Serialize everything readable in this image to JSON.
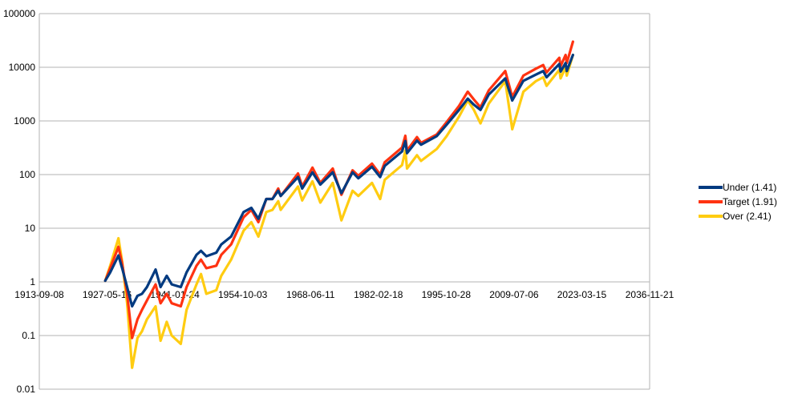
{
  "chart_data": {
    "type": "line",
    "title": "",
    "xlabel": "",
    "ylabel": "",
    "y_scale": "log",
    "ylim": [
      0.01,
      100000
    ],
    "xlim": [
      "1913-09-08",
      "2036-11-21"
    ],
    "x_ticks": [
      "1913-09-08",
      "1927-05-16",
      "1941-01-24",
      "1954-10-03",
      "1968-06-11",
      "1982-02-18",
      "1995-10-28",
      "2009-07-06",
      "2023-03-15",
      "2036-11-21"
    ],
    "y_ticks": [
      "0.01",
      "0.1",
      "1",
      "10",
      "100",
      "1000",
      "10000",
      "100000"
    ],
    "grid": "horizontal",
    "legend_position": "right",
    "series": [
      {
        "name": "Under (1.41)",
        "color": "#003a80",
        "x": [
          "1926-12-31",
          "1928-01-01",
          "1929-09-01",
          "1930-06-01",
          "1931-06-01",
          "1932-06-01",
          "1933-07-01",
          "1934-06-01",
          "1935-06-01",
          "1937-03-01",
          "1938-03-01",
          "1939-06-01",
          "1940-06-01",
          "1942-04-01",
          "1943-06-01",
          "1945-06-01",
          "1946-05-01",
          "1947-06-01",
          "1949-06-01",
          "1950-06-01",
          "1952-06-01",
          "1954-12-01",
          "1956-07-01",
          "1957-12-01",
          "1959-07-01",
          "1960-10-01",
          "1961-12-01",
          "1962-06-01",
          "1965-12-01",
          "1966-10-01",
          "1968-11-01",
          "1970-06-01",
          "1972-12-01",
          "1974-09-01",
          "1976-12-01",
          "1978-02-01",
          "1980-11-01",
          "1982-07-01",
          "1983-06-01",
          "1986-12-01",
          "1987-08-01",
          "1987-12-01",
          "1989-12-01",
          "1990-10-01",
          "1993-12-01",
          "1995-12-01",
          "1998-06-01",
          "2000-03-01",
          "2001-06-01",
          "2002-10-01",
          "2004-06-01",
          "2007-10-01",
          "2009-03-01",
          "2011-06-01",
          "2013-12-01",
          "2015-06-01",
          "2016-02-01",
          "2018-09-01",
          "2018-12-01",
          "2019-12-01",
          "2020-03-01",
          "2021-06-01"
        ],
        "values": [
          1.05,
          1.5,
          3.1,
          1.8,
          0.8,
          0.35,
          0.55,
          0.6,
          0.8,
          1.7,
          0.8,
          1.3,
          0.9,
          0.8,
          1.5,
          3.2,
          3.8,
          3.0,
          3.5,
          5,
          7,
          20,
          24,
          15,
          35,
          35,
          50,
          40,
          90,
          55,
          110,
          65,
          110,
          45,
          110,
          85,
          140,
          90,
          145,
          270,
          420,
          250,
          430,
          360,
          520,
          850,
          1600,
          2600,
          2000,
          1600,
          3100,
          6200,
          2400,
          5600,
          7300,
          8500,
          6500,
          11500,
          8300,
          12000,
          8500,
          17000
        ]
      },
      {
        "name": "Target (1.91)",
        "color": "#ff3311",
        "x": [
          "1926-12-31",
          "1928-01-01",
          "1929-09-01",
          "1930-06-01",
          "1931-06-01",
          "1932-06-01",
          "1933-07-01",
          "1934-06-01",
          "1935-06-01",
          "1937-03-01",
          "1938-03-01",
          "1939-06-01",
          "1940-06-01",
          "1942-04-01",
          "1943-06-01",
          "1945-06-01",
          "1946-05-01",
          "1947-06-01",
          "1949-06-01",
          "1950-06-01",
          "1952-06-01",
          "1954-12-01",
          "1956-07-01",
          "1957-12-01",
          "1959-07-01",
          "1960-10-01",
          "1961-12-01",
          "1962-06-01",
          "1965-12-01",
          "1966-10-01",
          "1968-11-01",
          "1970-06-01",
          "1972-12-01",
          "1974-09-01",
          "1976-12-01",
          "1978-02-01",
          "1980-11-01",
          "1982-07-01",
          "1983-06-01",
          "1986-12-01",
          "1987-08-01",
          "1987-12-01",
          "1989-12-01",
          "1990-10-01",
          "1993-12-01",
          "1995-12-01",
          "1998-06-01",
          "2000-03-01",
          "2001-06-01",
          "2002-10-01",
          "2004-06-01",
          "2007-10-01",
          "2009-03-01",
          "2011-06-01",
          "2013-12-01",
          "2015-06-01",
          "2016-02-01",
          "2018-09-01",
          "2018-12-01",
          "2019-12-01",
          "2020-03-01",
          "2021-06-01"
        ],
        "values": [
          1.05,
          1.8,
          4.5,
          2.2,
          0.6,
          0.09,
          0.2,
          0.3,
          0.45,
          0.9,
          0.4,
          0.6,
          0.4,
          0.35,
          0.8,
          2.0,
          2.6,
          1.8,
          2.0,
          3.2,
          5,
          16,
          22,
          13,
          35,
          35,
          55,
          40,
          105,
          60,
          135,
          70,
          130,
          42,
          120,
          95,
          160,
          100,
          170,
          320,
          530,
          280,
          500,
          390,
          560,
          950,
          1900,
          3500,
          2500,
          1800,
          3700,
          8500,
          2800,
          7000,
          9400,
          11000,
          8000,
          15000,
          10500,
          17000,
          12000,
          30000
        ]
      },
      {
        "name": "Over (2.41)",
        "color": "#ffcc11",
        "x": [
          "1926-12-31",
          "1928-01-01",
          "1929-09-01",
          "1930-06-01",
          "1931-06-01",
          "1932-06-01",
          "1933-07-01",
          "1934-06-01",
          "1935-06-01",
          "1937-03-01",
          "1938-03-01",
          "1939-06-01",
          "1940-06-01",
          "1942-04-01",
          "1943-06-01",
          "1945-06-01",
          "1946-05-01",
          "1947-06-01",
          "1949-06-01",
          "1950-06-01",
          "1952-06-01",
          "1954-12-01",
          "1956-07-01",
          "1957-12-01",
          "1959-07-01",
          "1960-10-01",
          "1961-12-01",
          "1962-06-01",
          "1965-12-01",
          "1966-10-01",
          "1968-11-01",
          "1970-06-01",
          "1972-12-01",
          "1974-09-01",
          "1976-12-01",
          "1978-02-01",
          "1980-11-01",
          "1982-07-01",
          "1983-06-01",
          "1986-12-01",
          "1987-08-01",
          "1987-12-01",
          "1989-12-01",
          "1990-10-01",
          "1993-12-01",
          "1995-12-01",
          "1998-06-01",
          "2000-03-01",
          "2001-06-01",
          "2002-10-01",
          "2004-06-01",
          "2007-10-01",
          "2009-03-01",
          "2011-06-01",
          "2013-12-01",
          "2015-06-01",
          "2016-02-01",
          "2018-09-01",
          "2018-12-01",
          "2019-12-01",
          "2020-03-01",
          "2021-06-01"
        ],
        "values": [
          1.05,
          2.0,
          6.5,
          2.4,
          0.4,
          0.025,
          0.09,
          0.12,
          0.2,
          0.35,
          0.08,
          0.18,
          0.1,
          0.07,
          0.3,
          0.9,
          1.4,
          0.6,
          0.7,
          1.3,
          2.6,
          9,
          13,
          7,
          20,
          22,
          32,
          22,
          60,
          33,
          75,
          30,
          70,
          14,
          50,
          40,
          70,
          35,
          80,
          150,
          280,
          130,
          230,
          180,
          300,
          520,
          1200,
          2400,
          1600,
          900,
          2100,
          5500,
          700,
          3500,
          5500,
          6500,
          4500,
          9000,
          6200,
          10000,
          7000,
          17000
        ]
      }
    ]
  }
}
